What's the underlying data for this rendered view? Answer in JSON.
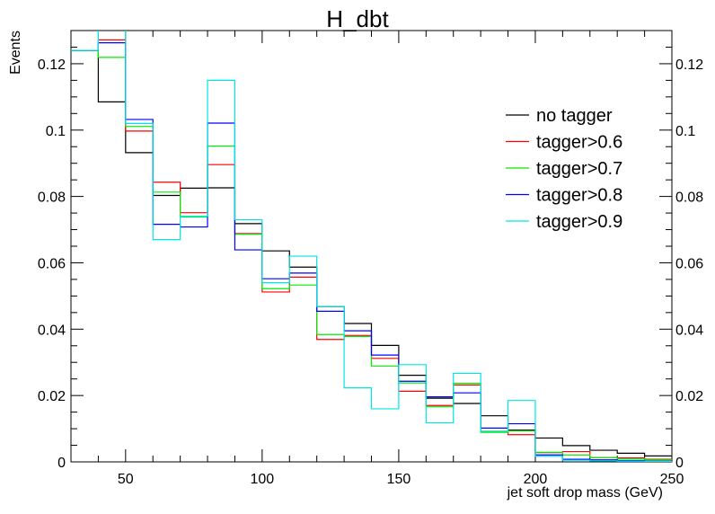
{
  "chart_data": {
    "type": "histogram-step",
    "title": "H_dbt",
    "xlabel": "jet soft drop mass (GeV)",
    "ylabel": "Events",
    "xlim": [
      30,
      250
    ],
    "ylim": [
      0,
      0.13
    ],
    "x_ticks": [
      50,
      100,
      150,
      200,
      250
    ],
    "y_ticks": [
      0,
      0.02,
      0.04,
      0.06,
      0.08,
      0.1,
      0.12
    ],
    "y_tick_labels": [
      "0",
      "0.02",
      "0.04",
      "0.06",
      "0.08",
      "0.1",
      "0.12"
    ],
    "right_axis_labels": true,
    "grid": false,
    "legend_position": "top-right",
    "bin_edges": [
      30,
      40,
      50,
      60,
      70,
      80,
      90,
      100,
      110,
      120,
      130,
      140,
      150,
      160,
      170,
      180,
      190,
      200,
      210,
      220,
      230,
      240,
      250
    ],
    "series": [
      {
        "name": "no tagger",
        "color": "#000000",
        "values": [
          0.124,
          0.1085,
          0.0932,
          0.0803,
          0.0825,
          0.0826,
          0.0718,
          0.0636,
          0.0587,
          0.0468,
          0.0417,
          0.0351,
          0.0261,
          0.0192,
          0.0176,
          0.0139,
          0.0096,
          0.0072,
          0.0049,
          0.0035,
          0.0026,
          0.0018
        ]
      },
      {
        "name": "tagger>0.6",
        "color": "#ff0000",
        "values": [
          0.124,
          0.1272,
          0.0997,
          0.0843,
          0.0751,
          0.0896,
          0.0688,
          0.0512,
          0.0557,
          0.0369,
          0.0381,
          0.0312,
          0.0213,
          0.017,
          0.0232,
          0.0092,
          0.0082,
          0.0028,
          0.0031,
          0.0013,
          0.0012,
          0.0008
        ]
      },
      {
        "name": "tagger>0.7",
        "color": "#00ee00",
        "values": [
          0.124,
          0.1219,
          0.1011,
          0.0813,
          0.0738,
          0.0952,
          0.0686,
          0.0522,
          0.0533,
          0.0384,
          0.0378,
          0.0289,
          0.0238,
          0.0166,
          0.0237,
          0.0089,
          0.0093,
          0.0029,
          0.0021,
          0.0013,
          0.0009,
          0.0006
        ]
      },
      {
        "name": "tagger>0.8",
        "color": "#0000ff",
        "values": [
          0.124,
          0.1263,
          0.1032,
          0.0716,
          0.0708,
          0.1021,
          0.0639,
          0.0552,
          0.0569,
          0.0454,
          0.0395,
          0.0322,
          0.0243,
          0.0196,
          0.0208,
          0.0102,
          0.0115,
          0.0021,
          0.0008,
          0.0006,
          0.0004,
          0.0002
        ]
      },
      {
        "name": "tagger>0.9",
        "color": "#00e5e5",
        "values": [
          0.124,
          0.135,
          0.102,
          0.067,
          0.074,
          0.115,
          0.073,
          0.054,
          0.062,
          0.0468,
          0.0223,
          0.016,
          0.0293,
          0.0118,
          0.0267,
          0.0092,
          0.0185,
          0.0017,
          0.0005,
          0.0003,
          0.0002,
          0.0001
        ]
      }
    ]
  }
}
